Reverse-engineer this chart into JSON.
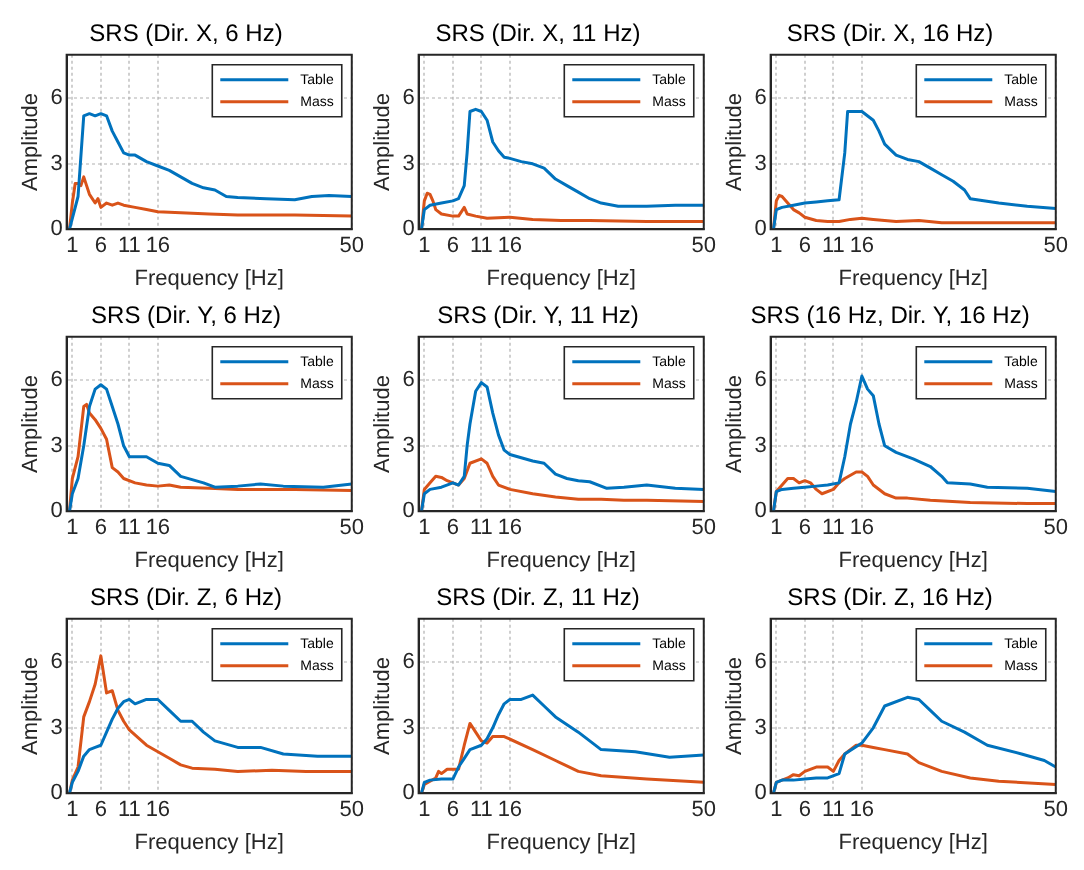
{
  "chart_data": [
    {
      "type": "line",
      "title": "SRS (Dir. X, 6 Hz)",
      "xlabel": "Frequency [Hz]",
      "ylabel": "Amplitude",
      "xlim": [
        0,
        50
      ],
      "ylim": [
        0,
        8
      ],
      "xticks": [
        1,
        6,
        11,
        16,
        50
      ],
      "yticks": [
        0,
        3,
        6
      ],
      "grid": true,
      "legend": "top right",
      "series": [
        {
          "name": "Table",
          "color": "#0072bd",
          "x": [
            0.5,
            1,
            2,
            3,
            4,
            5,
            6,
            7,
            8,
            9,
            10,
            11,
            12,
            14,
            16,
            18,
            20,
            22,
            24,
            26,
            28,
            30,
            35,
            40,
            43,
            46,
            50
          ],
          "values": [
            0,
            0.5,
            1.5,
            5.2,
            5.3,
            5.2,
            5.3,
            5.2,
            4.5,
            4.0,
            3.5,
            3.4,
            3.4,
            3.1,
            2.9,
            2.7,
            2.4,
            2.1,
            1.9,
            1.8,
            1.5,
            1.45,
            1.4,
            1.35,
            1.5,
            1.55,
            1.5
          ]
        },
        {
          "name": "Mass",
          "color": "#d95319",
          "x": [
            0.5,
            1,
            1.5,
            2,
            2.5,
            3,
            3.5,
            4,
            5,
            5.5,
            6,
            7,
            8,
            9,
            10,
            12,
            14,
            16,
            20,
            25,
            30,
            35,
            40,
            50
          ],
          "values": [
            0,
            1.2,
            2.1,
            2.1,
            2.0,
            2.4,
            2.0,
            1.6,
            1.2,
            1.4,
            1.0,
            1.2,
            1.1,
            1.2,
            1.1,
            1.0,
            0.9,
            0.8,
            0.75,
            0.7,
            0.65,
            0.65,
            0.65,
            0.6
          ]
        }
      ]
    },
    {
      "type": "line",
      "title": "SRS (Dir. X, 11 Hz)",
      "xlabel": "Frequency [Hz]",
      "ylabel": "Amplitude",
      "xlim": [
        0,
        50
      ],
      "ylim": [
        0,
        8
      ],
      "xticks": [
        1,
        6,
        11,
        16,
        50
      ],
      "yticks": [
        0,
        3,
        6
      ],
      "grid": true,
      "legend": "top right",
      "series": [
        {
          "name": "Table",
          "color": "#0072bd",
          "x": [
            0.5,
            1,
            2,
            4,
            6,
            7,
            8,
            8.5,
            9,
            10,
            11,
            12,
            13,
            14,
            15,
            16,
            18,
            20,
            22,
            24,
            26,
            28,
            30,
            32,
            35,
            40,
            45,
            50
          ],
          "values": [
            0,
            0.9,
            1.1,
            1.2,
            1.3,
            1.4,
            2.0,
            3.5,
            5.4,
            5.5,
            5.4,
            5.0,
            4.0,
            3.6,
            3.3,
            3.25,
            3.1,
            3.0,
            2.8,
            2.3,
            2.0,
            1.7,
            1.4,
            1.2,
            1.05,
            1.05,
            1.1,
            1.1
          ]
        },
        {
          "name": "Mass",
          "color": "#d95319",
          "x": [
            0.5,
            1,
            1.5,
            2,
            2.5,
            3,
            4,
            6,
            7,
            8,
            8.5,
            10,
            12,
            16,
            20,
            25,
            30,
            40,
            50
          ],
          "values": [
            0,
            1.3,
            1.65,
            1.6,
            1.3,
            0.9,
            0.7,
            0.6,
            0.6,
            1.0,
            0.7,
            0.6,
            0.5,
            0.55,
            0.45,
            0.4,
            0.4,
            0.35,
            0.35
          ]
        }
      ]
    },
    {
      "type": "line",
      "title": "SRS (Dir. X, 16 Hz)",
      "xlabel": "Frequency [Hz]",
      "ylabel": "Amplitude",
      "xlim": [
        0,
        50
      ],
      "ylim": [
        0,
        8
      ],
      "xticks": [
        1,
        6,
        11,
        16,
        50
      ],
      "yticks": [
        0,
        3,
        6
      ],
      "grid": true,
      "legend": "top right",
      "series": [
        {
          "name": "Table",
          "color": "#0072bd",
          "x": [
            0.5,
            1,
            2,
            4,
            6,
            8,
            10,
            12,
            13,
            13.5,
            16,
            18,
            19,
            20,
            22,
            24,
            26,
            28,
            30,
            32,
            34,
            35,
            40,
            45,
            50
          ],
          "values": [
            0,
            0.9,
            1.0,
            1.1,
            1.2,
            1.25,
            1.3,
            1.35,
            3.5,
            5.4,
            5.4,
            5.0,
            4.5,
            3.9,
            3.4,
            3.2,
            3.1,
            2.8,
            2.5,
            2.2,
            1.8,
            1.4,
            1.2,
            1.05,
            0.95
          ]
        },
        {
          "name": "Mass",
          "color": "#d95319",
          "x": [
            0.5,
            1,
            1.5,
            2,
            3,
            4,
            5,
            6,
            8,
            10,
            12,
            14,
            16,
            18,
            22,
            26,
            30,
            40,
            50
          ],
          "values": [
            0,
            1.3,
            1.55,
            1.5,
            1.2,
            0.9,
            0.75,
            0.55,
            0.4,
            0.35,
            0.35,
            0.45,
            0.5,
            0.45,
            0.35,
            0.4,
            0.3,
            0.3,
            0.3
          ]
        }
      ]
    },
    {
      "type": "line",
      "title": "SRS (Dir. Y, 6 Hz)",
      "xlabel": "Frequency [Hz]",
      "ylabel": "Amplitude",
      "xlim": [
        0,
        50
      ],
      "ylim": [
        0,
        8
      ],
      "xticks": [
        1,
        6,
        11,
        16,
        50
      ],
      "yticks": [
        0,
        3,
        6
      ],
      "grid": true,
      "legend": "top right",
      "series": [
        {
          "name": "Table",
          "color": "#0072bd",
          "x": [
            0.5,
            1,
            2,
            3,
            4,
            5,
            6,
            7,
            8,
            9,
            10,
            11,
            12,
            14,
            16,
            18,
            20,
            22,
            24,
            26,
            30,
            34,
            38,
            45,
            50
          ],
          "values": [
            0,
            0.8,
            1.5,
            3.0,
            4.8,
            5.6,
            5.8,
            5.6,
            4.8,
            4.0,
            3.0,
            2.5,
            2.5,
            2.5,
            2.2,
            2.1,
            1.6,
            1.45,
            1.3,
            1.1,
            1.15,
            1.25,
            1.15,
            1.1,
            1.25
          ]
        },
        {
          "name": "Mass",
          "color": "#d95319",
          "x": [
            0.5,
            1,
            2,
            3,
            3.5,
            4,
            5,
            6,
            7,
            8,
            9,
            10,
            12,
            14,
            16,
            18,
            20,
            25,
            30,
            40,
            50
          ],
          "values": [
            0,
            1.5,
            2.5,
            4.8,
            4.9,
            4.5,
            4.2,
            3.8,
            3.3,
            2.0,
            1.8,
            1.5,
            1.3,
            1.2,
            1.15,
            1.2,
            1.1,
            1.05,
            1.0,
            1.0,
            0.95
          ]
        }
      ]
    },
    {
      "type": "line",
      "title": "SRS (Dir. Y, 11 Hz)",
      "xlabel": "Frequency [Hz]",
      "ylabel": "Amplitude",
      "xlim": [
        0,
        50
      ],
      "ylim": [
        0,
        8
      ],
      "xticks": [
        1,
        6,
        11,
        16,
        50
      ],
      "yticks": [
        0,
        3,
        6
      ],
      "grid": true,
      "legend": "top right",
      "series": [
        {
          "name": "Table",
          "color": "#0072bd",
          "x": [
            0.5,
            1,
            2,
            4,
            6,
            7,
            8,
            8.5,
            9,
            10,
            11,
            12,
            13,
            14,
            15,
            16,
            20,
            22,
            24,
            26,
            28,
            30,
            33,
            36,
            40,
            45,
            50
          ],
          "values": [
            0,
            0.8,
            1.0,
            1.1,
            1.3,
            1.2,
            1.6,
            3.0,
            4.0,
            5.5,
            5.9,
            5.7,
            4.5,
            3.5,
            2.8,
            2.6,
            2.3,
            2.2,
            1.7,
            1.5,
            1.4,
            1.35,
            1.05,
            1.1,
            1.2,
            1.05,
            1.0
          ]
        },
        {
          "name": "Mass",
          "color": "#d95319",
          "x": [
            0.5,
            1,
            2,
            3,
            4,
            5,
            6,
            7,
            8,
            9,
            11,
            12,
            13,
            14,
            16,
            20,
            24,
            28,
            32,
            36,
            40,
            50
          ],
          "values": [
            0,
            1.0,
            1.3,
            1.6,
            1.55,
            1.4,
            1.3,
            1.2,
            1.5,
            2.2,
            2.4,
            2.2,
            1.6,
            1.2,
            1.0,
            0.8,
            0.65,
            0.55,
            0.55,
            0.5,
            0.5,
            0.45
          ]
        }
      ]
    },
    {
      "type": "line",
      "title": "SRS (16 Hz, Dir. Y, 16 Hz)",
      "xlabel": "Frequency [Hz]",
      "ylabel": "Amplitude",
      "xlim": [
        0,
        50
      ],
      "ylim": [
        0,
        8
      ],
      "xticks": [
        1,
        6,
        11,
        16,
        50
      ],
      "yticks": [
        0,
        3,
        6
      ],
      "grid": true,
      "legend": "top right",
      "series": [
        {
          "name": "Table",
          "color": "#0072bd",
          "x": [
            0.5,
            1,
            2,
            4,
            6,
            8,
            10,
            12,
            13,
            14,
            15,
            16,
            17,
            18,
            19,
            20,
            22,
            25,
            28,
            30,
            31,
            35,
            38,
            45,
            50
          ],
          "values": [
            0,
            0.9,
            1.0,
            1.05,
            1.1,
            1.15,
            1.2,
            1.3,
            2.5,
            4.0,
            5.0,
            6.2,
            5.6,
            5.3,
            4.0,
            3.0,
            2.7,
            2.4,
            2.05,
            1.6,
            1.3,
            1.25,
            1.1,
            1.05,
            0.9
          ]
        },
        {
          "name": "Mass",
          "color": "#d95319",
          "x": [
            0.5,
            1,
            2,
            3,
            4,
            5,
            6,
            7,
            8,
            9,
            11,
            12,
            13,
            15,
            16,
            17,
            18,
            20,
            22,
            24,
            28,
            35,
            45,
            50
          ],
          "values": [
            0,
            0.9,
            1.2,
            1.5,
            1.5,
            1.3,
            1.4,
            1.3,
            1.0,
            0.8,
            1.0,
            1.3,
            1.5,
            1.8,
            1.8,
            1.6,
            1.2,
            0.8,
            0.6,
            0.6,
            0.5,
            0.4,
            0.35,
            0.35
          ]
        }
      ]
    },
    {
      "type": "line",
      "title": "SRS (Dir. Z, 6 Hz)",
      "xlabel": "Frequency [Hz]",
      "ylabel": "Amplitude",
      "xlim": [
        0,
        50
      ],
      "ylim": [
        0,
        8
      ],
      "xticks": [
        1,
        6,
        11,
        16,
        50
      ],
      "yticks": [
        0,
        3,
        6
      ],
      "grid": true,
      "legend": "top right",
      "series": [
        {
          "name": "Table",
          "color": "#0072bd",
          "x": [
            0.5,
            1,
            2,
            3,
            4,
            5,
            6,
            7,
            8,
            9,
            10,
            11,
            12,
            14,
            16,
            18,
            20,
            22,
            24,
            26,
            30,
            34,
            38,
            44,
            50
          ],
          "values": [
            0,
            0.5,
            1.0,
            1.7,
            2.0,
            2.1,
            2.2,
            2.8,
            3.4,
            3.9,
            4.2,
            4.3,
            4.1,
            4.3,
            4.3,
            3.8,
            3.3,
            3.3,
            2.8,
            2.4,
            2.1,
            2.1,
            1.8,
            1.7,
            1.7
          ]
        },
        {
          "name": "Mass",
          "color": "#d95319",
          "x": [
            0.5,
            1,
            2,
            3,
            4,
            5,
            6,
            7,
            8,
            9,
            10,
            11,
            14,
            16,
            18,
            20,
            22,
            26,
            30,
            36,
            42,
            50
          ],
          "values": [
            0,
            0.6,
            1.2,
            3.5,
            4.2,
            5.0,
            6.3,
            4.6,
            4.7,
            3.8,
            3.3,
            2.9,
            2.2,
            1.9,
            1.6,
            1.3,
            1.15,
            1.1,
            1.0,
            1.05,
            1.0,
            1.0
          ]
        }
      ]
    },
    {
      "type": "line",
      "title": "SRS (Dir. Z, 11 Hz)",
      "xlabel": "Frequency [Hz]",
      "ylabel": "Amplitude",
      "xlim": [
        0,
        50
      ],
      "ylim": [
        0,
        8
      ],
      "xticks": [
        1,
        6,
        11,
        16,
        50
      ],
      "yticks": [
        0,
        3,
        6
      ],
      "grid": true,
      "legend": "top right",
      "series": [
        {
          "name": "Table",
          "color": "#0072bd",
          "x": [
            0.5,
            1,
            2,
            4,
            6,
            7,
            8,
            9,
            11,
            12,
            13,
            14,
            15,
            16,
            18,
            20,
            22,
            24,
            28,
            32,
            38,
            44,
            50
          ],
          "values": [
            0,
            0.5,
            0.6,
            0.65,
            0.65,
            1.2,
            1.6,
            2.0,
            2.2,
            2.5,
            3.0,
            3.6,
            4.1,
            4.3,
            4.3,
            4.5,
            4.0,
            3.5,
            2.8,
            2.0,
            1.9,
            1.65,
            1.75
          ]
        },
        {
          "name": "Mass",
          "color": "#d95319",
          "x": [
            0.5,
            1,
            2,
            3,
            3.5,
            4,
            5,
            7,
            8,
            9,
            10,
            11,
            12,
            13,
            15,
            20,
            24,
            28,
            32,
            40,
            50
          ],
          "values": [
            0,
            0.4,
            0.55,
            0.7,
            1.0,
            0.9,
            1.1,
            1.1,
            2.2,
            3.2,
            2.8,
            2.4,
            2.3,
            2.6,
            2.6,
            2.0,
            1.5,
            1.0,
            0.8,
            0.65,
            0.5
          ]
        }
      ]
    },
    {
      "type": "line",
      "title": "SRS (Dir. Z, 16 Hz)",
      "xlabel": "Frequency [Hz]",
      "ylabel": "Amplitude",
      "xlim": [
        0,
        50
      ],
      "ylim": [
        0,
        8
      ],
      "xticks": [
        1,
        6,
        11,
        16,
        50
      ],
      "yticks": [
        0,
        3,
        6
      ],
      "grid": true,
      "legend": "top right",
      "series": [
        {
          "name": "Table",
          "color": "#0072bd",
          "x": [
            0.5,
            1,
            2,
            4,
            6,
            8,
            10,
            12,
            13,
            16,
            18,
            20,
            24,
            26,
            28,
            30,
            34,
            38,
            44,
            48,
            50
          ],
          "values": [
            0,
            0.5,
            0.6,
            0.6,
            0.65,
            0.7,
            0.7,
            0.9,
            1.8,
            2.3,
            3.0,
            4.0,
            4.4,
            4.3,
            3.8,
            3.3,
            2.8,
            2.2,
            1.8,
            1.5,
            1.2
          ]
        },
        {
          "name": "Mass",
          "color": "#d95319",
          "x": [
            0.5,
            1,
            2,
            3,
            4,
            5,
            6,
            8,
            10,
            11,
            12,
            13,
            15,
            16,
            18,
            20,
            24,
            26,
            30,
            35,
            40,
            50
          ],
          "values": [
            0,
            0.5,
            0.6,
            0.7,
            0.85,
            0.8,
            1.0,
            1.2,
            1.2,
            1.0,
            1.5,
            1.8,
            2.2,
            2.2,
            2.1,
            2.0,
            1.8,
            1.4,
            1.0,
            0.7,
            0.55,
            0.4
          ]
        }
      ]
    }
  ]
}
